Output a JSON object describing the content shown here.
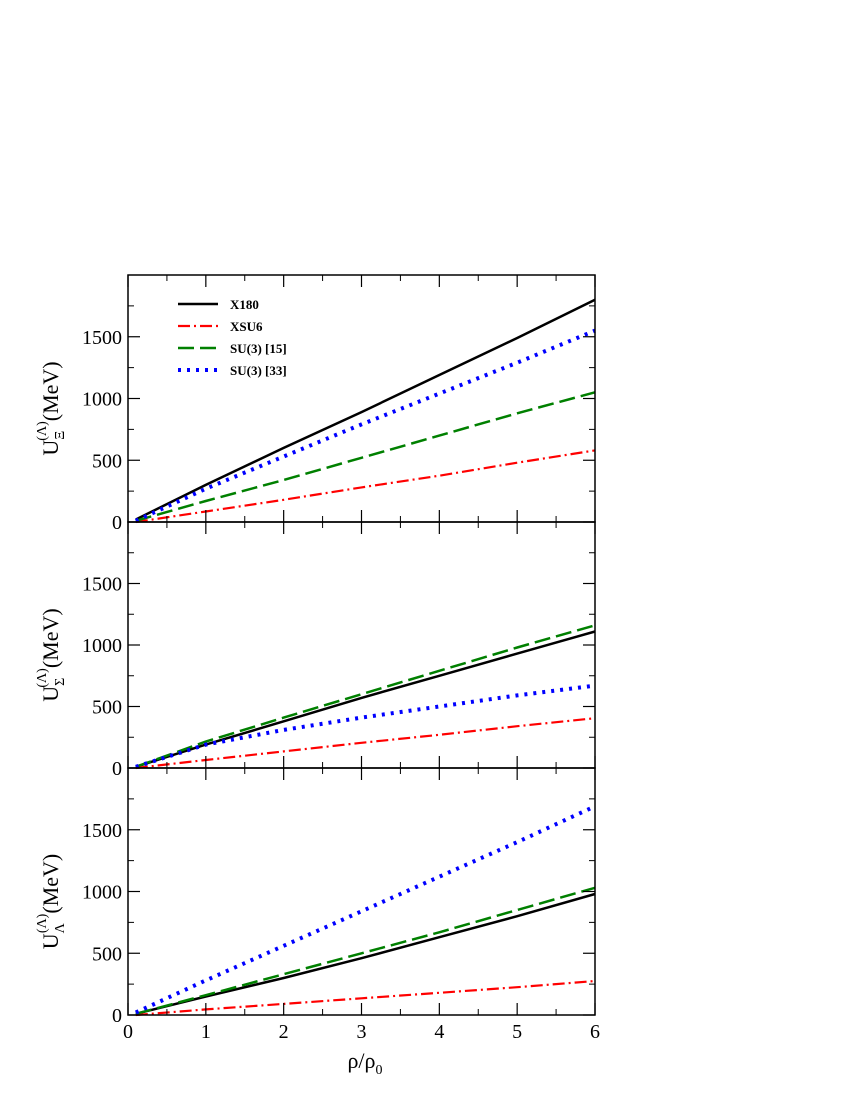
{
  "chart_data": {
    "type": "line",
    "xlim": [
      0,
      6
    ],
    "ylim": [
      0,
      2000
    ],
    "x_ticks": [
      0,
      1,
      2,
      3,
      4,
      5,
      6
    ],
    "y_ticks": [
      0,
      500,
      1000,
      1500
    ],
    "xlabel": {
      "main": "ρ/ρ",
      "sub": "0"
    },
    "series_colors": {
      "X180": "#000000",
      "XSU6": "#ff0000",
      "SU(3) [15]": "#008000",
      "SU(3) [33]": "#0000ff"
    },
    "series_styles": {
      "X180": "solid",
      "XSU6": "dash-dot",
      "SU(3) [15]": "dashed",
      "SU(3) [33]": "dotted"
    },
    "legend": {
      "placement": "top-left of top panel",
      "entries": [
        "X180",
        "XSU6",
        "SU(3) [15]",
        "SU(3) [33]"
      ]
    },
    "panels": [
      {
        "ylabel": {
          "main": "U",
          "sub": "Ξ",
          "sup": "(Λ)",
          "unit": "(MeV)"
        },
        "series": [
          {
            "name": "X180",
            "x": [
              0.1,
              1,
              2,
              3,
              4,
              5,
              6
            ],
            "y": [
              20,
              300,
              600,
              890,
              1190,
              1490,
              1800
            ]
          },
          {
            "name": "XSU6",
            "x": [
              0.1,
              1,
              2,
              3,
              4,
              5,
              6
            ],
            "y": [
              0,
              85,
              180,
              280,
              375,
              480,
              580
            ]
          },
          {
            "name": "SU(3) [15]",
            "x": [
              0.1,
              1,
              2,
              3,
              4,
              5,
              6
            ],
            "y": [
              10,
              170,
              340,
              520,
              700,
              880,
              1050
            ]
          },
          {
            "name": "SU(3) [33]",
            "x": [
              0.1,
              1,
              2,
              3,
              4,
              5,
              6
            ],
            "y": [
              10,
              270,
              530,
              790,
              1040,
              1290,
              1550
            ]
          }
        ]
      },
      {
        "ylabel": {
          "main": "U",
          "sub": "Σ",
          "sup": "(Λ)",
          "unit": "(MeV)"
        },
        "series": [
          {
            "name": "X180",
            "x": [
              0.1,
              1,
              2,
              3,
              4,
              5,
              6
            ],
            "y": [
              10,
              190,
              380,
              570,
              750,
              930,
              1110
            ]
          },
          {
            "name": "XSU6",
            "x": [
              0.1,
              1,
              2,
              3,
              4,
              5,
              6
            ],
            "y": [
              0,
              65,
              135,
              205,
              270,
              340,
              405
            ]
          },
          {
            "name": "SU(3) [15]",
            "x": [
              0.1,
              1,
              2,
              3,
              4,
              5,
              6
            ],
            "y": [
              10,
              215,
              410,
              600,
              790,
              980,
              1160
            ]
          },
          {
            "name": "SU(3) [33]",
            "x": [
              0.1,
              1,
              2,
              3,
              4,
              5,
              6
            ],
            "y": [
              10,
              190,
              310,
              410,
              500,
              590,
              670
            ]
          }
        ]
      },
      {
        "ylabel": {
          "main": "U",
          "sub": "Λ",
          "sup": "(Λ)",
          "unit": "(MeV)"
        },
        "series": [
          {
            "name": "X180",
            "x": [
              0.1,
              1,
              2,
              3,
              4,
              5,
              6
            ],
            "y": [
              10,
              150,
              300,
              460,
              630,
              800,
              980
            ]
          },
          {
            "name": "XSU6",
            "x": [
              0.1,
              1,
              2,
              3,
              4,
              5,
              6
            ],
            "y": [
              0,
              45,
              90,
              135,
              180,
              225,
              275
            ]
          },
          {
            "name": "SU(3) [15]",
            "x": [
              0.1,
              1,
              2,
              3,
              4,
              5,
              6
            ],
            "y": [
              10,
              160,
              330,
              500,
              670,
              850,
              1030
            ]
          },
          {
            "name": "SU(3) [33]",
            "x": [
              0.1,
              1,
              2,
              3,
              4,
              5,
              6
            ],
            "y": [
              20,
              280,
              560,
              840,
              1120,
              1400,
              1690
            ]
          }
        ]
      }
    ]
  }
}
